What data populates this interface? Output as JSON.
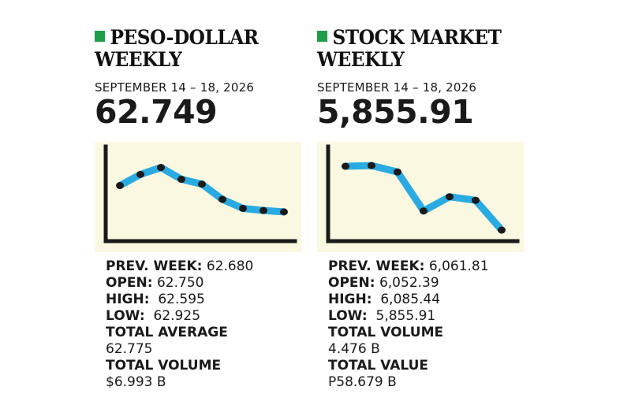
{
  "peso": {
    "title_line1": "PESO-DOLLAR",
    "title_line2": "WEEKLY",
    "date": "SEPTEMBER 14 – 18, 2026",
    "big_value": "62.749",
    "stats": [
      {
        "label": "PREV. WEEK:",
        "value": " 62.680"
      },
      {
        "label": "OPEN:",
        "value": " 62.750"
      },
      {
        "label": "HIGH:",
        "value": "  62.595"
      },
      {
        "label": "LOW:",
        "value": "  62.925"
      },
      {
        "label": "TOTAL AVERAGE",
        "value": ""
      },
      {
        "label": "",
        "value": "62.775"
      },
      {
        "label": "TOTAL VOLUME",
        "value": ""
      },
      {
        "label": "",
        "value": "$6.993 B"
      }
    ]
  },
  "stock": {
    "title_line1": "STOCK MARKET",
    "title_line2": "WEEKLY",
    "date": "SEPTEMBER 14 – 18, 2026",
    "big_value": "5,855.91",
    "stats": [
      {
        "label": "PREV. WEEK:",
        "value": " 6,061.81"
      },
      {
        "label": "OPEN:",
        "value": " 6,052.39"
      },
      {
        "label": "HIGH:",
        "value": "  6,085.44"
      },
      {
        "label": "LOW:",
        "value": "  5,855.91"
      },
      {
        "label": "TOTAL VOLUME",
        "value": ""
      },
      {
        "label": "",
        "value": "4.476 B"
      },
      {
        "label": "TOTAL VALUE",
        "value": ""
      },
      {
        "label": "",
        "value": "P58.679 B"
      }
    ]
  },
  "colors": {
    "accent_square": "#1e9e4a",
    "line": "#29abe2",
    "marker": "#1a1a1a",
    "chart_bg": "#fbf8e2",
    "axis": "#1a1a1a"
  },
  "chart_data": [
    {
      "type": "line",
      "x": [
        1,
        2,
        3,
        4,
        5,
        6,
        7,
        8,
        9
      ],
      "series": [
        {
          "values": [
            0.62,
            0.78,
            0.88,
            0.71,
            0.64,
            0.42,
            0.29,
            0.26,
            0.24
          ]
        }
      ],
      "title": "",
      "xlabel": "",
      "ylabel": "",
      "ylim": [
        0,
        1
      ],
      "grid": false,
      "legend": "none"
    },
    {
      "type": "line",
      "x": [
        1,
        2,
        3,
        4,
        5,
        6,
        7
      ],
      "series": [
        {
          "values": [
            0.9,
            0.91,
            0.82,
            0.27,
            0.47,
            0.42,
            0.0
          ]
        }
      ],
      "title": "",
      "xlabel": "",
      "ylabel": "",
      "ylim": [
        0,
        1
      ],
      "grid": false,
      "legend": "none"
    }
  ]
}
